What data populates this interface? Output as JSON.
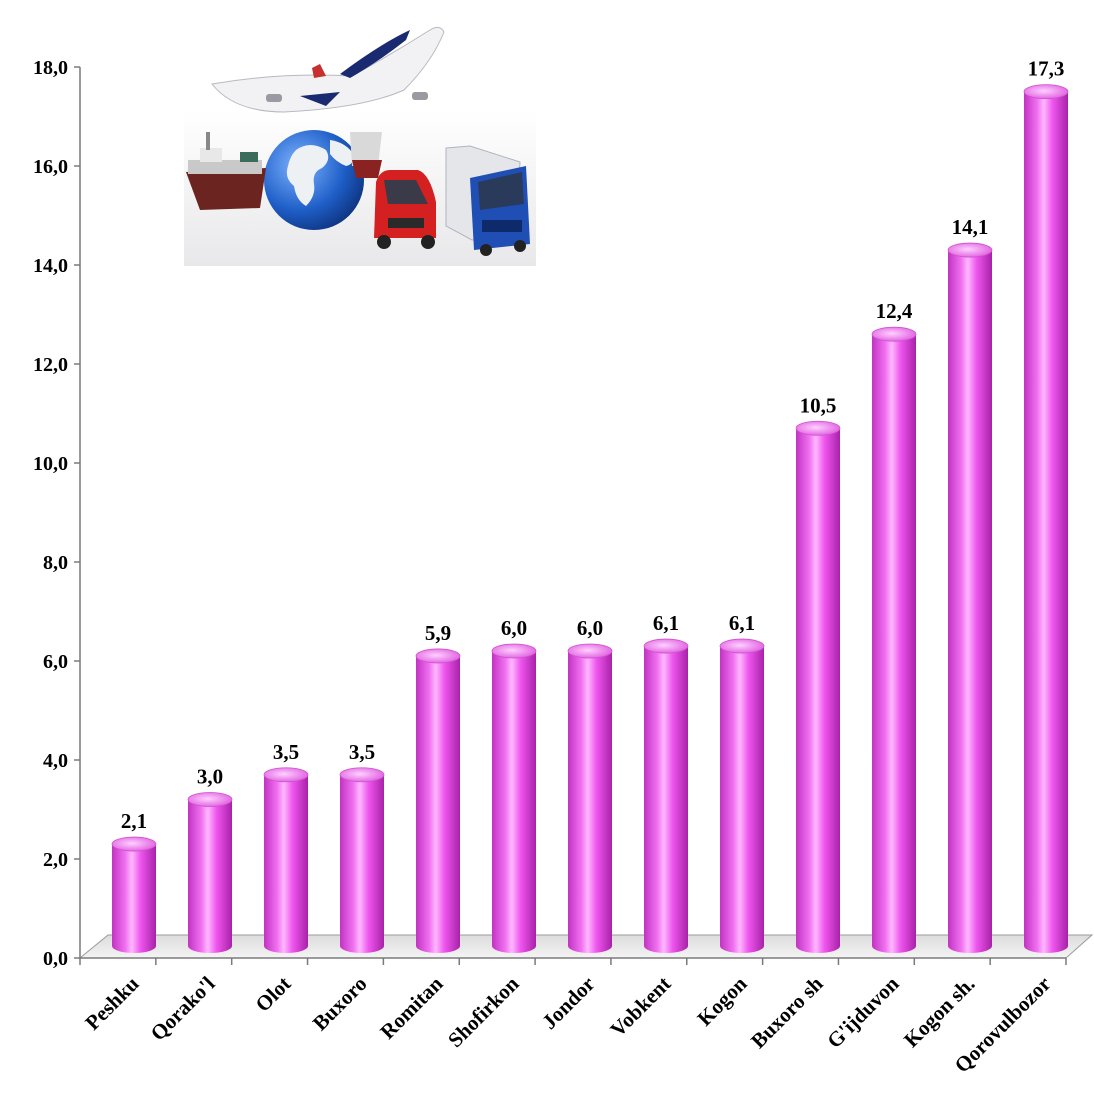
{
  "chart_data": {
    "type": "bar",
    "categories": [
      "Peshku",
      "Qorako'l",
      "Olot",
      "Buxoro",
      "Romitan",
      "Shofirkon",
      "Jondor",
      "Vobkent",
      "Kogon",
      "Buxoro sh",
      "G'ijduvon",
      "Kogon sh.",
      "Qorovulbozor"
    ],
    "values": [
      2.1,
      3.0,
      3.5,
      3.5,
      5.9,
      6.0,
      6.0,
      6.1,
      6.1,
      10.5,
      12.4,
      14.1,
      17.3
    ],
    "value_labels": [
      "2,1",
      "3,0",
      "3,5",
      "3,5",
      "5,9",
      "6,0",
      "6,0",
      "6,1",
      "6,1",
      "10,5",
      "12,4",
      "14,1",
      "17,3"
    ],
    "y_ticks": [
      "0,0",
      "2,0",
      "4,0",
      "6,0",
      "8,0",
      "10,0",
      "12,0",
      "14,0",
      "16,0",
      "18,0"
    ],
    "ylim": [
      0,
      18
    ],
    "title": "",
    "xlabel": "",
    "ylabel": "",
    "grid": false,
    "legend": "none",
    "style": "3d-cylinder",
    "bar_color": "#ee55ee",
    "bar_color_dark": "#b828b8",
    "bar_color_light": "#ffb8ff"
  },
  "illustration": {
    "name": "transport-illustration",
    "depicts": [
      "airplane-icon",
      "ship-icon",
      "globe-icon",
      "van-icon",
      "truck-icon"
    ]
  }
}
